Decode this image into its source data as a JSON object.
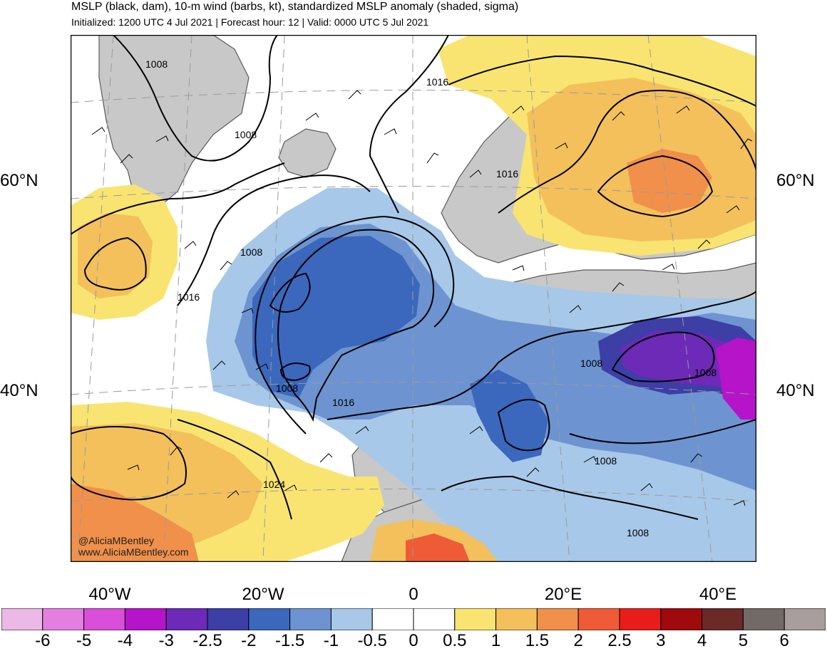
{
  "header": {
    "title": "MSLP (black, dam), 10-m wind (barbs, kt), standardized MSLP anomaly (shaded, sigma)",
    "subtitle": "Initialized: 1200 UTC 4 Jul 2021 | Forecast hour: 12 | Valid: 0000 UTC 5 Jul 2021"
  },
  "map": {
    "lat_labels": [
      "60°N",
      "60°N",
      "40°N",
      "40°N"
    ],
    "lon_labels": [
      "40°W",
      "20°W",
      "0",
      "20°E",
      "40°E"
    ],
    "contour_labels": [
      "1008",
      "1008",
      "1016",
      "1016",
      "1008",
      "1016",
      "1008",
      "1016",
      "1024",
      "1008",
      "1008",
      "1008",
      "1008"
    ],
    "credits": [
      "@AliciaMBentley",
      "www.AliciaMBentley.com"
    ]
  },
  "colorbar": {
    "ticks": [
      "-6",
      "-5",
      "-4",
      "-3",
      "-2.5",
      "-2",
      "-1.5",
      "-1",
      "-0.5",
      "0",
      "0.5",
      "1",
      "1.5",
      "2",
      "2.5",
      "3",
      "4",
      "5",
      "6"
    ],
    "colors": [
      "#ecb8e6",
      "#e47fe0",
      "#d94fd9",
      "#b514c8",
      "#6c2ab7",
      "#3d3ea6",
      "#3b68bd",
      "#6d94d0",
      "#a7c8e8",
      "#ffffff",
      "#ffffff",
      "#f9e471",
      "#f3c05c",
      "#f0904a",
      "#ef5b36",
      "#e81d1a",
      "#9f0a0c",
      "#6b2a27",
      "#716a67",
      "#a99e9e"
    ]
  },
  "palette": {
    "land_gray": "#c8c8c8",
    "border": "#5a5a5a",
    "contour": "#000000"
  }
}
